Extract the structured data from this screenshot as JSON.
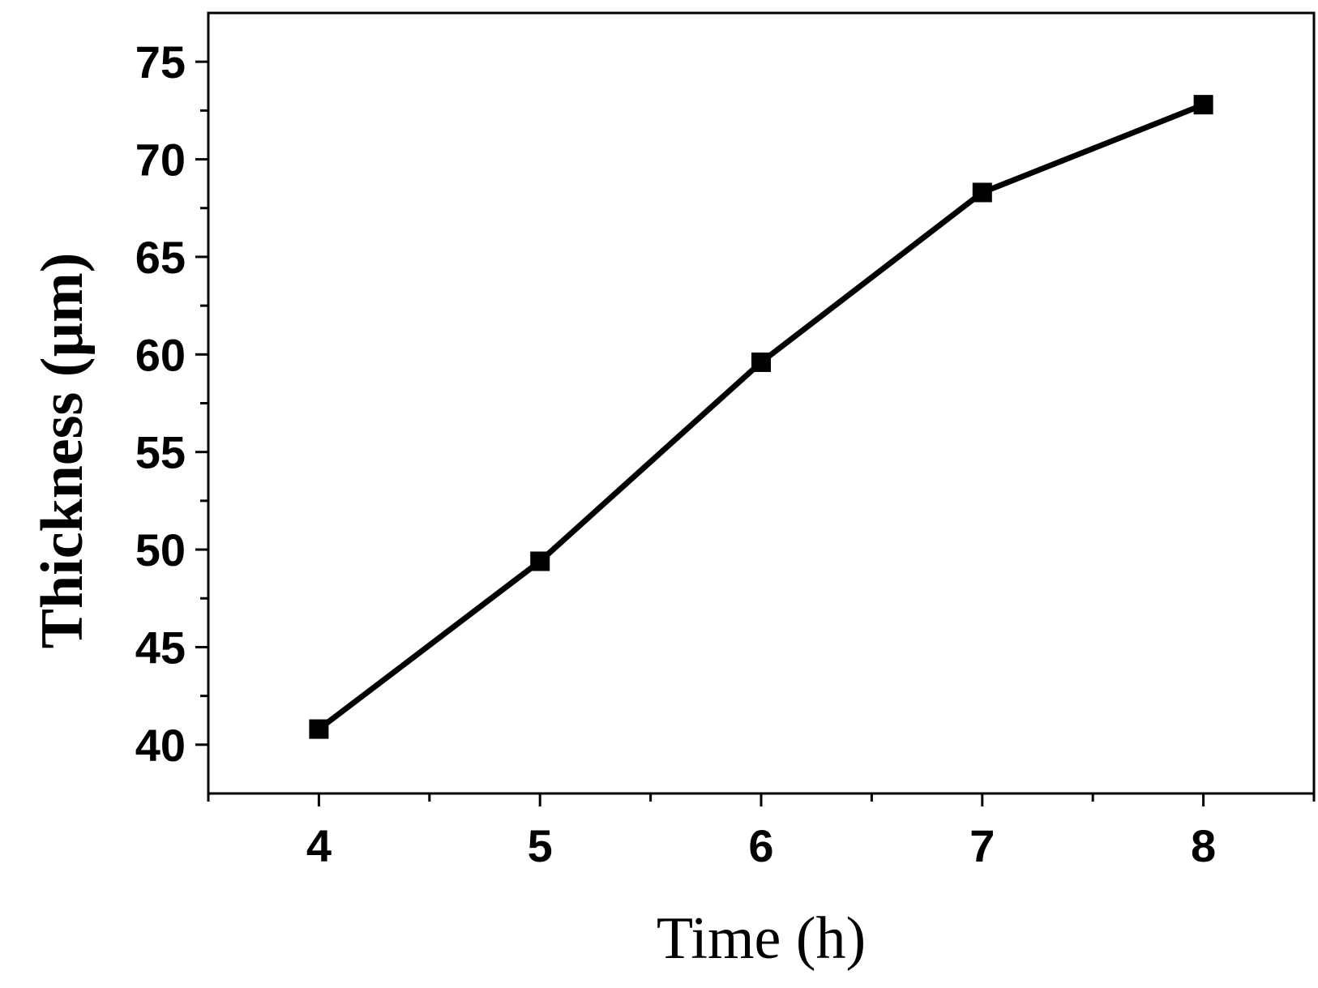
{
  "chart_data": {
    "type": "line",
    "xlabel": "Time (h)",
    "ylabel": "Thickness (µm)",
    "xlim": [
      3.5,
      8.5
    ],
    "ylim": [
      37.5,
      77.5
    ],
    "xticks": [
      4,
      5,
      6,
      7,
      8
    ],
    "yticks": [
      40,
      45,
      50,
      55,
      60,
      65,
      70,
      75
    ],
    "grid": false,
    "series": [
      {
        "x": [
          4,
          5,
          6,
          7,
          8
        ],
        "values": [
          40.8,
          49.4,
          59.6,
          68.3,
          72.8
        ],
        "marker": "square",
        "color": "#000000"
      }
    ]
  }
}
